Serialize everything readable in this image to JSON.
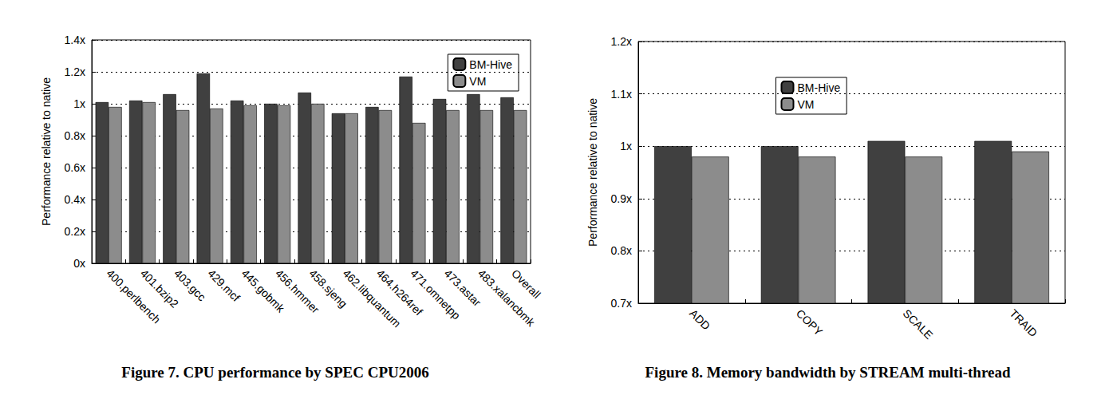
{
  "chart_data": [
    {
      "type": "bar",
      "title": "Figure 7. CPU performance by SPEC CPU2006",
      "ylabel": "Performance relative to native",
      "categories": [
        "400.perlbench",
        "401.bzip2",
        "403.gcc",
        "429.mcf",
        "445.gobmk",
        "456.hmmer",
        "458.sjeng",
        "462.libquantum",
        "464.h264ref",
        "471.omnetpp",
        "473.astar",
        "483.xalancbmk",
        "Overall"
      ],
      "series": [
        {
          "name": "BM-Hive",
          "color": "#404040",
          "values": [
            1.01,
            1.02,
            1.06,
            1.19,
            1.02,
            1.0,
            1.07,
            0.94,
            0.98,
            1.17,
            1.03,
            1.06,
            1.04
          ]
        },
        {
          "name": "VM",
          "color": "#8c8c8c",
          "values": [
            0.98,
            1.01,
            0.96,
            0.97,
            0.99,
            0.99,
            1.0,
            0.94,
            0.96,
            0.88,
            0.96,
            0.96,
            0.96
          ]
        }
      ],
      "ylim": [
        0,
        1.4
      ],
      "yticks": [
        {
          "value": 0,
          "label": "0x"
        },
        {
          "value": 0.2,
          "label": "0.2x"
        },
        {
          "value": 0.4,
          "label": "0.4x"
        },
        {
          "value": 0.6,
          "label": "0.6x"
        },
        {
          "value": 0.8,
          "label": "0.8x"
        },
        {
          "value": 1,
          "label": "1x"
        },
        {
          "value": 1.2,
          "label": "1.2x"
        },
        {
          "value": 1.4,
          "label": "1.4x"
        }
      ],
      "grid": true,
      "legend": "upper right"
    },
    {
      "type": "bar",
      "title": "Figure 8. Memory bandwidth by STREAM multi-thread",
      "ylabel": "Performance relative to native",
      "categories": [
        "ADD",
        "COPY",
        "SCALE",
        "TRAID"
      ],
      "series": [
        {
          "name": "BM-Hive",
          "color": "#404040",
          "values": [
            1.0,
            1.0,
            1.01,
            1.01
          ]
        },
        {
          "name": "VM",
          "color": "#8c8c8c",
          "values": [
            0.98,
            0.98,
            0.98,
            0.99
          ]
        }
      ],
      "ylim": [
        0.7,
        1.2
      ],
      "yticks": [
        {
          "value": 0.7,
          "label": "0.7x"
        },
        {
          "value": 0.8,
          "label": "0.8x"
        },
        {
          "value": 0.9,
          "label": "0.9x"
        },
        {
          "value": 1,
          "label": "1x"
        },
        {
          "value": 1.1,
          "label": "1.1x"
        },
        {
          "value": 1.2,
          "label": "1.2x"
        }
      ],
      "grid": true,
      "legend": "upper center"
    }
  ]
}
